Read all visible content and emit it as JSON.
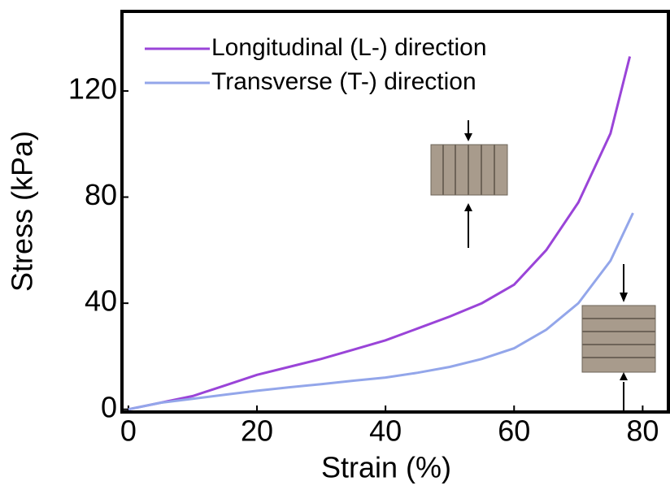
{
  "chart_data": {
    "type": "line",
    "x_label": "Strain (%)",
    "y_label": "Stress (kPa)",
    "xlim": [
      -1,
      84
    ],
    "ylim": [
      -1,
      150
    ],
    "xticks": [
      0,
      20,
      40,
      60,
      80
    ],
    "yticks": [
      0,
      40,
      80,
      120
    ],
    "series": [
      {
        "name": "Longitudinal (L-) direction",
        "color": "#9a44d8",
        "x": [
          0,
          5,
          10,
          15,
          20,
          25,
          30,
          35,
          40,
          45,
          50,
          55,
          60,
          65,
          70,
          75,
          78
        ],
        "values": [
          0,
          2.5,
          5,
          9,
          13,
          16,
          19,
          22.5,
          26,
          30.5,
          35,
          40,
          47,
          60,
          78,
          104,
          133
        ]
      },
      {
        "name": "Transverse (T-) direction",
        "color": "#93a6ea",
        "x": [
          0,
          5,
          10,
          15,
          20,
          25,
          30,
          35,
          40,
          45,
          50,
          55,
          60,
          65,
          70,
          75,
          78.5
        ],
        "values": [
          0,
          2.5,
          4,
          5.5,
          7,
          8.3,
          9.5,
          10.8,
          12,
          13.8,
          16,
          19,
          23,
          30,
          40,
          56,
          74
        ]
      }
    ]
  }
}
